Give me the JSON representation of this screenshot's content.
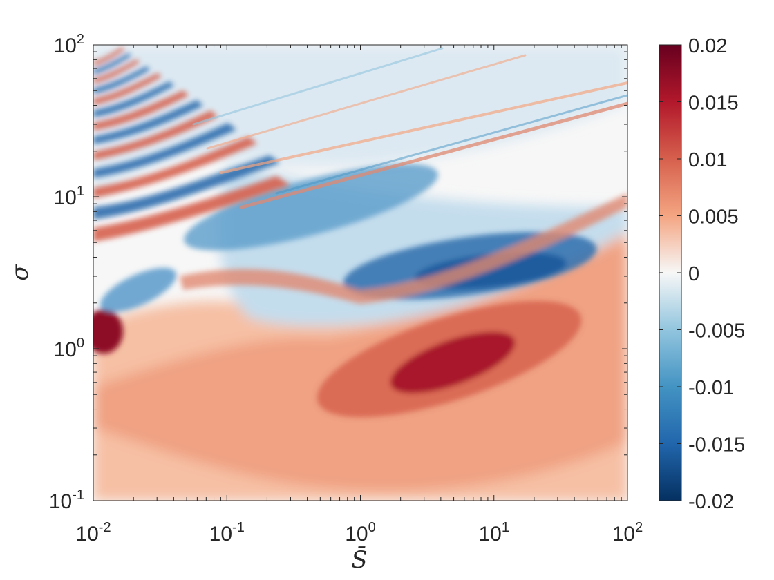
{
  "chart_data": {
    "type": "heatmap",
    "title": "",
    "xlabel": "S̄",
    "ylabel": "σ",
    "xscale": "log",
    "yscale": "log",
    "xlim": [
      0.01,
      100
    ],
    "ylim": [
      0.1,
      100
    ],
    "x_ticks": [
      {
        "base": "10",
        "exp": "-2"
      },
      {
        "base": "10",
        "exp": "-1"
      },
      {
        "base": "10",
        "exp": "0"
      },
      {
        "base": "10",
        "exp": "1"
      },
      {
        "base": "10",
        "exp": "2"
      }
    ],
    "y_ticks": [
      {
        "base": "10",
        "exp": "-1"
      },
      {
        "base": "10",
        "exp": "0"
      },
      {
        "base": "10",
        "exp": "1"
      },
      {
        "base": "10",
        "exp": "2"
      }
    ],
    "colorbar": {
      "range": [
        -0.02,
        0.02
      ],
      "colormap": "diverging blue-white-red",
      "tick_labels": [
        "-0.02",
        "-0.015",
        "-0.01",
        "-0.005",
        "0",
        "0.005",
        "0.01",
        "0.015",
        "0.02"
      ],
      "colors": [
        "#053061",
        "#2166ac",
        "#4393c3",
        "#92c5de",
        "#f7f7f7",
        "#f4a582",
        "#d6604d",
        "#b2182b",
        "#67001f"
      ]
    },
    "features": [
      {
        "S": 5,
        "sigma": 0.8,
        "value": 0.02
      },
      {
        "S": 8,
        "sigma": 3.0,
        "value": -0.018
      },
      {
        "S": 0.011,
        "sigma": 1.2,
        "value": 0.02
      },
      {
        "S": 0.2,
        "sigma": 7,
        "value": -0.012
      },
      {
        "S": 0.015,
        "sigma": 30,
        "value": -0.015
      }
    ]
  }
}
